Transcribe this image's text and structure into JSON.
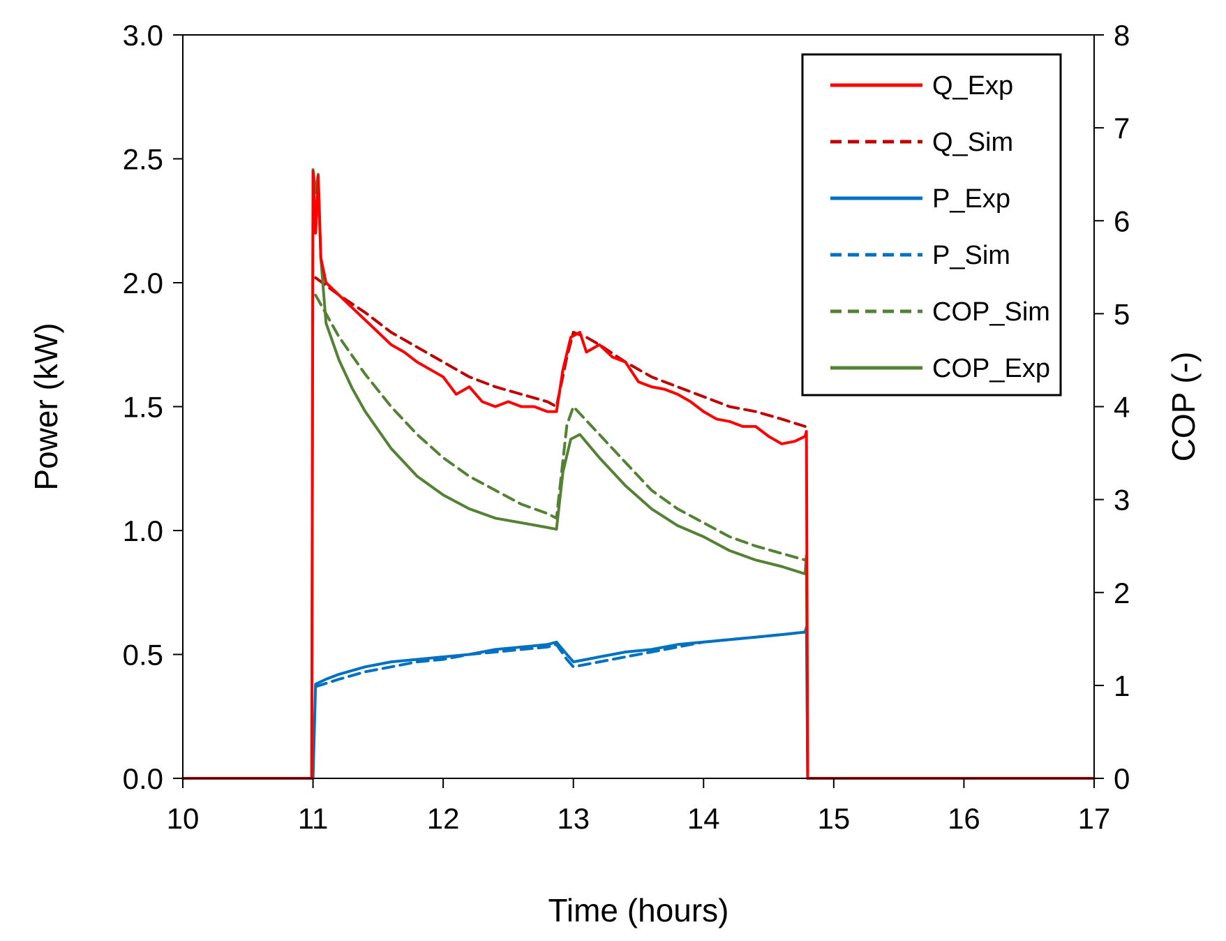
{
  "chart_data": {
    "type": "line",
    "title": "",
    "xlabel": "Time (hours)",
    "ylabel": "Power (kW)",
    "y2label": "COP (-)",
    "xlim": [
      10,
      17
    ],
    "ylim": [
      0,
      3.0
    ],
    "y2lim": [
      0,
      8
    ],
    "xticks": [
      "10",
      "11",
      "12",
      "13",
      "14",
      "15",
      "16",
      "17"
    ],
    "yticks": [
      "0.0",
      "0.5",
      "1.0",
      "1.5",
      "2.0",
      "2.5",
      "3.0"
    ],
    "y2ticks": [
      "0",
      "1",
      "2",
      "3",
      "4",
      "5",
      "6",
      "7",
      "8"
    ],
    "grid": false,
    "legend_position": "top-right",
    "series": [
      {
        "name": "Q_Exp",
        "axis": "left",
        "color": "#ff0000",
        "dash": "solid",
        "x": [
          10,
          10.99,
          11.0,
          11.02,
          11.04,
          11.06,
          11.1,
          11.2,
          11.3,
          11.4,
          11.5,
          11.6,
          11.7,
          11.8,
          11.9,
          12.0,
          12.1,
          12.2,
          12.3,
          12.4,
          12.5,
          12.6,
          12.7,
          12.8,
          12.87,
          12.92,
          12.98,
          13.05,
          13.1,
          13.2,
          13.3,
          13.4,
          13.5,
          13.6,
          13.7,
          13.8,
          13.9,
          14.0,
          14.1,
          14.2,
          14.3,
          14.4,
          14.5,
          14.6,
          14.7,
          14.78,
          14.79,
          14.8,
          17
        ],
        "values": [
          0,
          0,
          2.45,
          2.2,
          2.43,
          2.1,
          2.0,
          1.95,
          1.9,
          1.85,
          1.8,
          1.75,
          1.72,
          1.68,
          1.65,
          1.62,
          1.55,
          1.58,
          1.52,
          1.5,
          1.52,
          1.5,
          1.5,
          1.48,
          1.48,
          1.65,
          1.78,
          1.8,
          1.72,
          1.75,
          1.7,
          1.68,
          1.6,
          1.58,
          1.57,
          1.55,
          1.52,
          1.48,
          1.45,
          1.44,
          1.42,
          1.42,
          1.38,
          1.35,
          1.36,
          1.38,
          1.4,
          0.0,
          0
        ]
      },
      {
        "name": "Q_Sim",
        "axis": "left",
        "color": "#c00000",
        "dash": "dashed",
        "x": [
          11.02,
          11.2,
          11.4,
          11.6,
          11.8,
          12.0,
          12.2,
          12.4,
          12.6,
          12.8,
          12.87,
          12.95,
          13.0,
          13.1,
          13.2,
          13.4,
          13.6,
          13.8,
          14.0,
          14.2,
          14.4,
          14.6,
          14.78
        ],
        "values": [
          2.02,
          1.95,
          1.88,
          1.8,
          1.74,
          1.68,
          1.62,
          1.58,
          1.55,
          1.52,
          1.5,
          1.7,
          1.8,
          1.78,
          1.75,
          1.68,
          1.62,
          1.58,
          1.54,
          1.5,
          1.48,
          1.45,
          1.42
        ]
      },
      {
        "name": "P_Exp",
        "axis": "left",
        "color": "#0070c0",
        "dash": "solid",
        "x": [
          10,
          10.99,
          11.0,
          11.02,
          11.1,
          11.2,
          11.4,
          11.6,
          11.8,
          12.0,
          12.2,
          12.4,
          12.6,
          12.8,
          12.87,
          12.95,
          13.0,
          13.1,
          13.2,
          13.4,
          13.6,
          13.8,
          14.0,
          14.2,
          14.4,
          14.6,
          14.78,
          14.79,
          14.8,
          17
        ],
        "values": [
          0,
          0,
          0.0,
          0.38,
          0.4,
          0.42,
          0.45,
          0.47,
          0.48,
          0.49,
          0.5,
          0.52,
          0.53,
          0.54,
          0.55,
          0.5,
          0.47,
          0.48,
          0.49,
          0.51,
          0.52,
          0.54,
          0.55,
          0.56,
          0.57,
          0.58,
          0.59,
          0.61,
          0.0,
          0
        ]
      },
      {
        "name": "P_Sim",
        "axis": "left",
        "color": "#0070c0",
        "dash": "dashed",
        "x": [
          11.02,
          11.2,
          11.4,
          11.6,
          11.8,
          12.0,
          12.2,
          12.4,
          12.6,
          12.8,
          12.87,
          12.95,
          13.0,
          13.2,
          13.4,
          13.6,
          13.8,
          14.0,
          14.2,
          14.4,
          14.6,
          14.78
        ],
        "values": [
          0.37,
          0.4,
          0.43,
          0.45,
          0.47,
          0.48,
          0.5,
          0.51,
          0.52,
          0.53,
          0.54,
          0.48,
          0.45,
          0.47,
          0.49,
          0.51,
          0.53,
          0.55,
          0.56,
          0.57,
          0.58,
          0.59
        ]
      },
      {
        "name": "COP_Sim",
        "axis": "right",
        "color": "#548235",
        "dash": "dashed",
        "x": [
          11.02,
          11.1,
          11.2,
          11.3,
          11.4,
          11.6,
          11.8,
          12.0,
          12.2,
          12.4,
          12.6,
          12.8,
          12.87,
          12.95,
          13.0,
          13.1,
          13.2,
          13.4,
          13.6,
          13.8,
          14.0,
          14.2,
          14.4,
          14.6,
          14.78
        ],
        "values": [
          5.2,
          5.0,
          4.75,
          4.55,
          4.35,
          4.0,
          3.7,
          3.45,
          3.25,
          3.1,
          2.95,
          2.85,
          2.8,
          3.8,
          4.0,
          3.85,
          3.7,
          3.4,
          3.1,
          2.9,
          2.75,
          2.6,
          2.5,
          2.42,
          2.35
        ]
      },
      {
        "name": "COP_Exp",
        "axis": "right",
        "color": "#548235",
        "dash": "solid",
        "x": [
          10,
          10.99,
          11.0,
          11.02,
          11.04,
          11.06,
          11.1,
          11.2,
          11.3,
          11.4,
          11.6,
          11.8,
          12.0,
          12.2,
          12.4,
          12.6,
          12.8,
          12.87,
          12.92,
          12.98,
          13.05,
          13.2,
          13.4,
          13.6,
          13.8,
          14.0,
          14.2,
          14.4,
          14.6,
          14.78,
          14.79,
          14.8,
          17
        ],
        "values": [
          0,
          0,
          6.55,
          6.3,
          6.5,
          5.6,
          4.9,
          4.5,
          4.2,
          3.95,
          3.55,
          3.25,
          3.05,
          2.9,
          2.8,
          2.75,
          2.7,
          2.68,
          3.3,
          3.65,
          3.7,
          3.45,
          3.15,
          2.9,
          2.72,
          2.6,
          2.45,
          2.35,
          2.28,
          2.2,
          2.4,
          0,
          0
        ]
      }
    ]
  }
}
